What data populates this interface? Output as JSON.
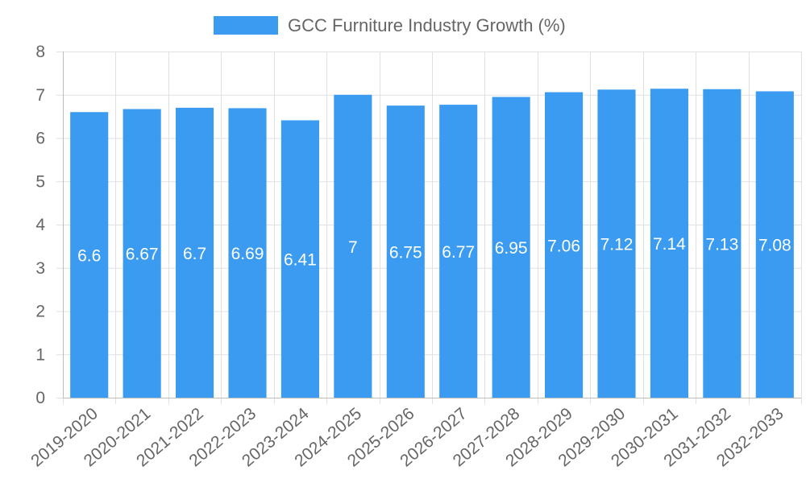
{
  "chart_data": {
    "type": "bar",
    "title": "",
    "xlabel": "",
    "ylabel": "",
    "categories": [
      "2019-2020",
      "2020-2021",
      "2021-2022",
      "2022-2023",
      "2023-2024",
      "2024-2025",
      "2025-2026",
      "2026-2027",
      "2027-2028",
      "2028-2029",
      "2029-2030",
      "2030-2031",
      "2031-2032",
      "2032-2033"
    ],
    "series": [
      {
        "name": "GCC Furniture Industry Growth (%)",
        "values": [
          6.6,
          6.67,
          6.7,
          6.69,
          6.41,
          7,
          6.75,
          6.77,
          6.95,
          7.06,
          7.12,
          7.14,
          7.13,
          7.08
        ],
        "data_labels": [
          "6.6",
          "6.67",
          "6.7",
          "6.69",
          "6.41",
          "7",
          "6.75",
          "6.77",
          "6.95",
          "7.06",
          "7.12",
          "7.14",
          "7.13",
          "7.08"
        ],
        "color": "#3a9bf0"
      }
    ],
    "ylim": [
      0,
      8
    ],
    "yticks": [
      0,
      1,
      2,
      3,
      4,
      5,
      6,
      7,
      8
    ],
    "ytick_labels": [
      "0",
      "1",
      "2",
      "3",
      "4",
      "5",
      "6",
      "7",
      "8"
    ],
    "grid": true,
    "legend": "top-center",
    "colors": {
      "bar": "#3a9bf0",
      "grid": "#e1e1e1",
      "axis": "#bdbdbd",
      "text": "#666666",
      "data_label": "#ffffff"
    }
  }
}
